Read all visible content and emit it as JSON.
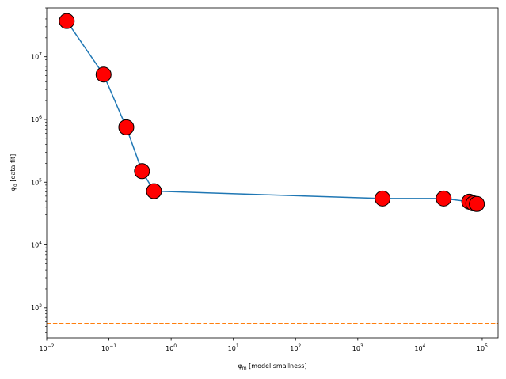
{
  "chart_data": {
    "type": "line",
    "xscale": "log",
    "yscale": "log",
    "xlabel_main": "φ",
    "xlabel_sub": "m",
    "xlabel_rest": " [model smallness]",
    "ylabel_main": "φ",
    "ylabel_sub": "d",
    "ylabel_rest": " [data fit]",
    "xlim": [
      0.01,
      180000
    ],
    "ylim": [
      330,
      60000000
    ],
    "grid": false,
    "x_ticks": [
      {
        "value": 0.01,
        "base": "10",
        "exp": "−2"
      },
      {
        "value": 0.1,
        "base": "10",
        "exp": "−1"
      },
      {
        "value": 1,
        "base": "10",
        "exp": "0"
      },
      {
        "value": 10,
        "base": "10",
        "exp": "1"
      },
      {
        "value": 100,
        "base": "10",
        "exp": "2"
      },
      {
        "value": 1000,
        "base": "10",
        "exp": "3"
      },
      {
        "value": 10000,
        "base": "10",
        "exp": "4"
      },
      {
        "value": 100000,
        "base": "10",
        "exp": "5"
      }
    ],
    "y_ticks": [
      {
        "value": 1000,
        "base": "10",
        "exp": "3"
      },
      {
        "value": 10000,
        "base": "10",
        "exp": "4"
      },
      {
        "value": 100000,
        "base": "10",
        "exp": "5"
      },
      {
        "value": 1000000,
        "base": "10",
        "exp": "6"
      },
      {
        "value": 10000000,
        "base": "10",
        "exp": "7"
      }
    ],
    "series": [
      {
        "line_color": "#1f77b4",
        "marker_fill": "#ff0000",
        "marker_edge": "#000000",
        "x": [
          0.021,
          0.082,
          0.19,
          0.34,
          0.53,
          2500,
          24000,
          62000,
          72000,
          82000
        ],
        "y": [
          37000000,
          5200000,
          750000,
          150000,
          72000,
          55000,
          55000,
          49000,
          46000,
          45000
        ]
      }
    ],
    "reference_line": {
      "y": 560,
      "color": "#ff7f0e",
      "style": "dashed"
    }
  }
}
